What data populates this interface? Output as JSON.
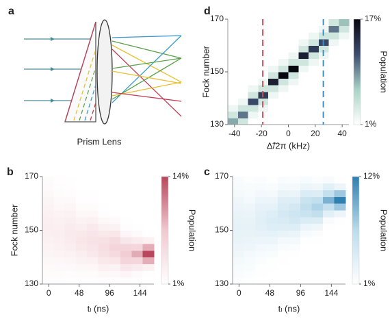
{
  "panel_labels": [
    "a",
    "b",
    "c",
    "d"
  ],
  "diagram": {
    "caption": "Prism Lens"
  },
  "chart_data": [
    {
      "type": "heatmap",
      "xlabel": "Δ̃/2π (kHz)",
      "ylabel": "Fock number",
      "xlim": [
        -45,
        45
      ],
      "ylim": [
        130,
        170
      ],
      "xticks": [
        -40,
        -20,
        0,
        20,
        40
      ],
      "yticks": [
        130,
        150,
        170
      ],
      "xbins": [
        -45,
        -37.5,
        -30,
        -22.5,
        -15,
        -7.5,
        0,
        7.5,
        15,
        22.5,
        30,
        37.5,
        45
      ],
      "ybins": [
        130,
        132.5,
        135,
        137.5,
        140,
        142.5,
        145,
        147.5,
        150,
        152.5,
        155,
        157.5,
        160,
        162.5,
        165,
        167.5,
        170
      ],
      "z": [
        [
          8,
          4,
          2,
          1,
          1,
          1,
          1,
          1,
          1,
          1,
          1,
          1,
          1,
          1,
          1,
          1
        ],
        [
          4,
          10,
          4,
          2,
          1,
          1,
          1,
          1,
          1,
          1,
          1,
          1,
          1,
          1,
          1,
          1
        ],
        [
          1,
          2,
          4,
          12,
          4,
          2,
          1,
          1,
          1,
          1,
          1,
          1,
          1,
          1,
          1,
          1
        ],
        [
          1,
          1,
          2,
          4,
          13,
          4,
          2,
          1,
          1,
          1,
          1,
          1,
          1,
          1,
          1,
          1
        ],
        [
          1,
          1,
          1,
          1,
          2,
          4,
          15,
          4,
          2,
          1,
          1,
          1,
          1,
          1,
          1,
          1
        ],
        [
          1,
          1,
          1,
          1,
          1,
          2,
          4,
          17,
          4,
          2,
          1,
          1,
          1,
          1,
          1,
          1
        ],
        [
          1,
          1,
          1,
          1,
          1,
          1,
          2,
          4,
          17,
          4,
          2,
          1,
          1,
          1,
          1,
          1
        ],
        [
          1,
          1,
          1,
          1,
          1,
          1,
          1,
          1,
          2,
          4,
          15,
          4,
          2,
          1,
          1,
          1
        ],
        [
          1,
          1,
          1,
          1,
          1,
          1,
          1,
          1,
          1,
          2,
          4,
          13,
          4,
          2,
          1,
          1
        ],
        [
          1,
          1,
          1,
          1,
          1,
          1,
          1,
          1,
          1,
          1,
          2,
          4,
          12,
          4,
          2,
          1
        ],
        [
          1,
          1,
          1,
          1,
          1,
          1,
          1,
          1,
          1,
          1,
          1,
          1,
          2,
          4,
          10,
          4
        ],
        [
          1,
          1,
          1,
          1,
          1,
          1,
          1,
          1,
          1,
          1,
          1,
          1,
          1,
          2,
          4,
          7
        ]
      ],
      "colormap": [
        "#ffffff",
        "#a9d3c6",
        "#3d4c6e",
        "#07070f"
      ],
      "clim": [
        1,
        17
      ],
      "cticks": [
        {
          "value": 17,
          "label": "17%"
        },
        {
          "value": 1,
          "label": "1%"
        }
      ],
      "colorbar_label": "Population",
      "vlines": [
        {
          "x": -19,
          "color": "#c0505e"
        },
        {
          "x": 26,
          "color": "#3d8fc4"
        }
      ]
    },
    {
      "type": "heatmap",
      "xlabel": "tₗ (ns)",
      "ylabel": "Fock number",
      "xlim": [
        -10,
        166
      ],
      "ylim": [
        130,
        170
      ],
      "xticks": [
        0,
        48,
        96,
        144
      ],
      "yticks": [
        130,
        150,
        170
      ],
      "xbins": [
        -10,
        7.6,
        25.2,
        42.8,
        60.4,
        78,
        95.6,
        113.2,
        130.8,
        148.4,
        166
      ],
      "ybins": [
        130,
        132.5,
        135,
        137.5,
        140,
        142.5,
        145,
        147.5,
        150,
        152.5,
        155,
        157.5,
        160,
        162.5,
        165,
        167.5,
        170
      ],
      "z": [
        [
          1.3,
          1.5,
          1.6,
          1.9,
          2.2,
          2.5,
          2.8,
          2.9,
          3,
          2.9,
          2.8,
          2.5,
          2.2,
          1.9,
          1.6,
          1.5
        ],
        [
          1.3,
          1.5,
          1.7,
          2.0,
          2.4,
          2.7,
          2.9,
          3,
          2.9,
          2.7,
          2.4,
          2.0,
          1.7,
          1.5,
          1.3,
          1.2
        ],
        [
          1.2,
          1.4,
          1.7,
          2.1,
          2.6,
          3.0,
          3.3,
          3.5,
          3.3,
          3.0,
          2.6,
          2.1,
          1.7,
          1.4,
          1.2,
          1.1
        ],
        [
          1.2,
          1.5,
          1.9,
          2.6,
          3.1,
          3.7,
          4,
          3.7,
          3.1,
          2.6,
          1.9,
          1.5,
          1.2,
          1.1,
          1,
          1
        ],
        [
          1.2,
          1.5,
          2.0,
          2.8,
          3.6,
          4.1,
          4.5,
          4.1,
          3.6,
          2.8,
          2.0,
          1.5,
          1.2,
          1.1,
          1,
          1
        ],
        [
          1.4,
          1.9,
          2.7,
          3.7,
          4.6,
          5,
          4.6,
          3.7,
          2.7,
          1.9,
          1.4,
          1.1,
          1,
          1,
          1,
          1
        ],
        [
          1.2,
          1.7,
          2.6,
          4.0,
          5.4,
          6,
          5.4,
          4.0,
          2.6,
          1.7,
          1.2,
          1,
          1,
          1,
          1,
          1
        ],
        [
          1.4,
          2.3,
          3.9,
          6.0,
          7,
          6.0,
          3.9,
          2.3,
          1.4,
          1.1,
          1,
          1,
          1,
          1,
          1,
          1
        ],
        [
          1.1,
          1.6,
          3.4,
          5.9,
          9,
          5.9,
          3.4,
          1.6,
          1.1,
          1,
          1,
          1,
          1,
          1,
          1,
          1
        ],
        [
          1,
          1.1,
          2.8,
          8.9,
          14,
          8.9,
          2.8,
          1.1,
          1,
          1,
          1,
          1,
          1,
          1,
          1,
          1
        ]
      ],
      "colormap": [
        "#ffffff",
        "#f0c9d0",
        "#b8475b"
      ],
      "clim": [
        1,
        14
      ],
      "cticks": [
        {
          "value": 14,
          "label": "14%"
        },
        {
          "value": 1,
          "label": "1%"
        }
      ],
      "colorbar_label": "Population"
    },
    {
      "type": "heatmap",
      "xlabel": "tₗ (ns)",
      "xlim": [
        -10,
        166
      ],
      "ylim": [
        130,
        170
      ],
      "xticks": [
        0,
        48,
        96,
        144
      ],
      "yticks": [
        130,
        150,
        170
      ],
      "xbins": [
        -10,
        7.6,
        25.2,
        42.8,
        60.4,
        78,
        95.6,
        113.2,
        130.8,
        148.4,
        166
      ],
      "ybins": [
        130,
        132.5,
        135,
        137.5,
        140,
        142.5,
        145,
        147.5,
        150,
        152.5,
        155,
        157.5,
        160,
        162.5,
        165,
        167.5,
        170
      ],
      "z": [
        [
          1.3,
          1.5,
          1.6,
          1.9,
          2.2,
          2.5,
          2.8,
          2.9,
          3,
          2.9,
          2.8,
          2.5,
          2.2,
          1.9,
          1.6,
          1.5
        ],
        [
          1.2,
          1.3,
          1.5,
          1.7,
          2.0,
          2.4,
          2.7,
          2.9,
          3,
          2.9,
          2.7,
          2.4,
          2.0,
          1.7,
          1.5,
          1.3
        ],
        [
          1,
          1.1,
          1.2,
          1.4,
          1.7,
          2.1,
          2.6,
          3.0,
          3.3,
          3.5,
          3.3,
          3.0,
          2.6,
          2.1,
          1.7,
          1.4
        ],
        [
          1,
          1,
          1.1,
          1.2,
          1.5,
          1.9,
          2.6,
          3.1,
          3.7,
          4,
          3.7,
          3.1,
          2.6,
          1.9,
          1.5,
          1.2
        ],
        [
          1,
          1,
          1,
          1.1,
          1.2,
          1.5,
          2.0,
          2.8,
          3.6,
          4.1,
          4.5,
          4.1,
          3.6,
          2.8,
          2.0,
          1.5
        ],
        [
          1,
          1,
          1,
          1,
          1.1,
          1.4,
          1.9,
          2.7,
          3.7,
          4.6,
          5,
          4.6,
          3.7,
          2.7,
          1.9,
          1.4
        ],
        [
          1,
          1,
          1,
          1,
          1,
          1,
          1.2,
          1.7,
          2.6,
          4.0,
          5.4,
          6,
          5.4,
          4.0,
          2.6,
          1.7
        ],
        [
          1,
          1,
          1,
          1,
          1,
          1,
          1.1,
          1.4,
          2.3,
          3.9,
          6.0,
          7,
          6.0,
          3.9,
          2.3,
          1.4
        ],
        [
          1,
          1,
          1,
          1,
          1,
          1,
          1,
          1,
          1.1,
          1.6,
          3.4,
          5.9,
          9,
          5.9,
          3.4,
          1.6
        ],
        [
          1,
          1,
          1,
          1,
          1,
          1,
          1,
          1,
          1,
          1.1,
          2.5,
          7.7,
          12,
          7.7,
          2.5,
          1.1
        ]
      ],
      "colormap": [
        "#ffffff",
        "#bcdcec",
        "#2f7fb0"
      ],
      "clim": [
        1,
        12
      ],
      "cticks": [
        {
          "value": 12,
          "label": "12%"
        },
        {
          "value": 1,
          "label": "1%"
        }
      ],
      "colorbar_label": "Population"
    }
  ]
}
